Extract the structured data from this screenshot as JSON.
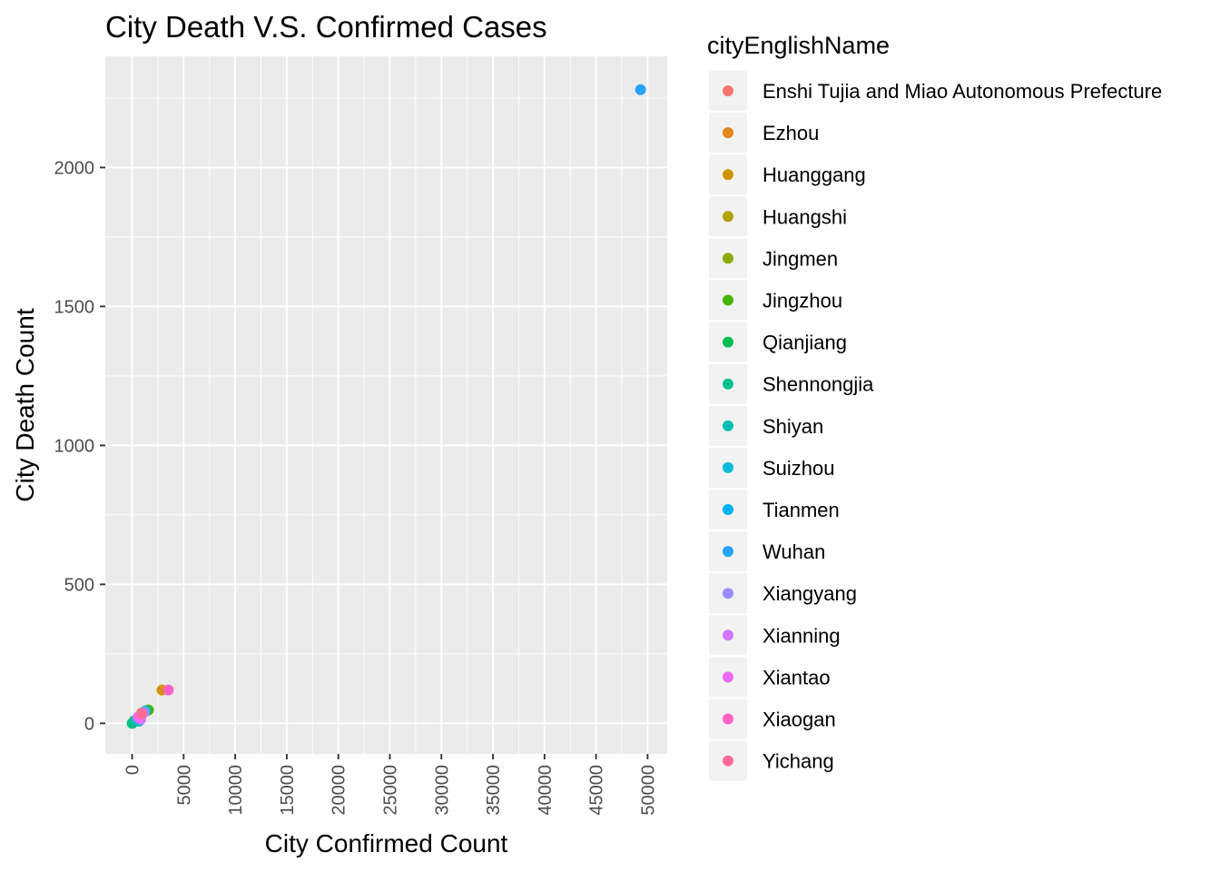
{
  "chart_data": {
    "type": "scatter",
    "title": "City Death V.S. Confirmed Cases",
    "xlabel": "City Confirmed Count",
    "ylabel": "City Death Count",
    "xlim": [
      -2600,
      51900
    ],
    "ylim": [
      -110,
      2400
    ],
    "xticks": [
      0,
      5000,
      10000,
      15000,
      20000,
      25000,
      30000,
      35000,
      40000,
      45000,
      50000
    ],
    "xtick_labels": [
      "0",
      "5000",
      "10000",
      "15000",
      "20000",
      "25000",
      "30000",
      "35000",
      "40000",
      "45000",
      "50000"
    ],
    "yticks": [
      0,
      500,
      1000,
      1500,
      2000
    ],
    "ytick_labels": [
      "0",
      "500",
      "1000",
      "1500",
      "2000"
    ],
    "grid": true,
    "legend_title": "cityEnglishName",
    "legend_position": "right",
    "series": [
      {
        "name": "Enshi Tujia and Miao Autonomous Prefecture",
        "color": "#F8766D",
        "x": 252,
        "y": 7
      },
      {
        "name": "Ezhou",
        "color": "#E7851E",
        "x": 1394,
        "y": 45
      },
      {
        "name": "Huanggang",
        "color": "#D09400",
        "x": 2907,
        "y": 120
      },
      {
        "name": "Huangshi",
        "color": "#B2A100",
        "x": 1015,
        "y": 37
      },
      {
        "name": "Jingmen",
        "color": "#89AC00",
        "x": 928,
        "y": 37
      },
      {
        "name": "Jingzhou",
        "color": "#45B500",
        "x": 1580,
        "y": 48
      },
      {
        "name": "Qianjiang",
        "color": "#00BC51",
        "x": 198,
        "y": 9
      },
      {
        "name": "Shennongjia",
        "color": "#00C087",
        "x": 11,
        "y": 0
      },
      {
        "name": "Shiyan",
        "color": "#00C0B2",
        "x": 672,
        "y": 8
      },
      {
        "name": "Suizhou",
        "color": "#00BCD6",
        "x": 1307,
        "y": 45
      },
      {
        "name": "Tianmen",
        "color": "#00B3F2",
        "x": 496,
        "y": 15
      },
      {
        "name": "Wuhan",
        "color": "#29A3FF",
        "x": 49315,
        "y": 2280
      },
      {
        "name": "Xiangyang",
        "color": "#9C8DFF",
        "x": 1175,
        "y": 40
      },
      {
        "name": "Xianning",
        "color": "#D277FF",
        "x": 836,
        "y": 15
      },
      {
        "name": "Xiantao",
        "color": "#F269F3",
        "x": 575,
        "y": 22
      },
      {
        "name": "Xiaogan",
        "color": "#FF61C7",
        "x": 3518,
        "y": 120
      },
      {
        "name": "Yichang",
        "color": "#FF6A98",
        "x": 931,
        "y": 35
      }
    ]
  }
}
